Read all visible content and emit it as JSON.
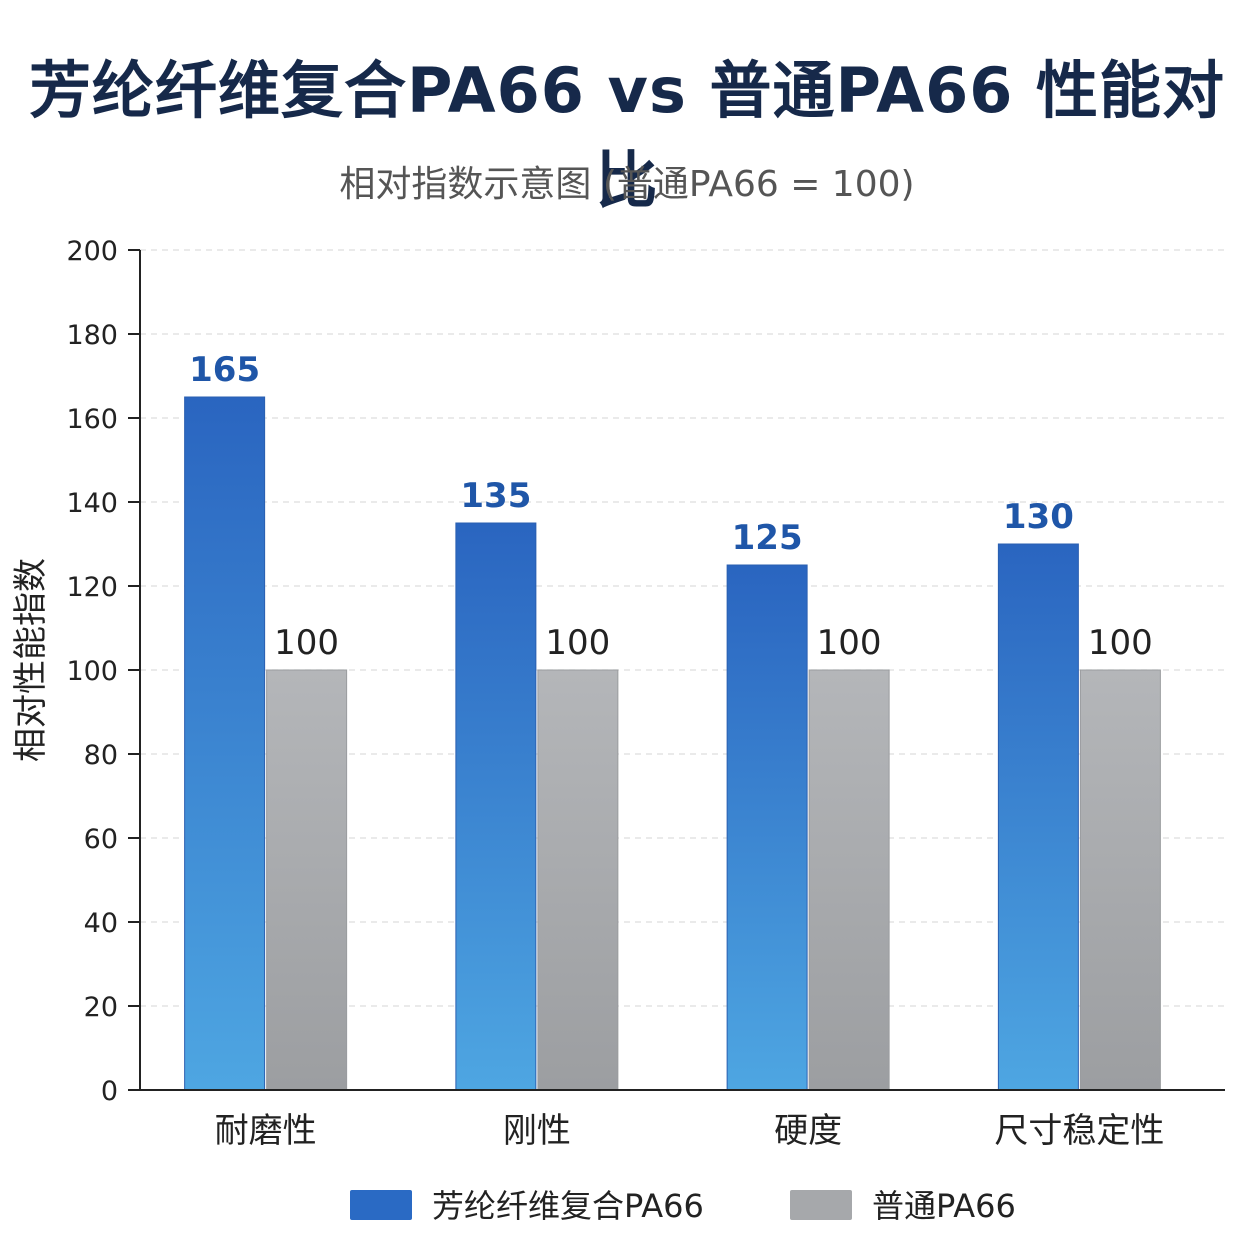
{
  "chart_data": {
    "type": "bar",
    "title": "芳纶纤维复合PA66 vs 普通PA66 性能对比",
    "subtitle": "相对指数示意图 (普通PA66 = 100)",
    "ylabel": "相对性能指数",
    "xlabel": "",
    "ylim": [
      0,
      200
    ],
    "yticks": [
      0,
      20,
      40,
      60,
      80,
      100,
      120,
      140,
      160,
      180,
      200
    ],
    "categories": [
      "耐磨性",
      "刚性",
      "硬度",
      "尺寸稳定性"
    ],
    "series": [
      {
        "name": "芳纶纤维复合PA66",
        "values": [
          165,
          135,
          125,
          130
        ],
        "color": "#2a6ac4",
        "color_light": "#4da3e0"
      },
      {
        "name": "普通PA66",
        "values": [
          100,
          100,
          100,
          100
        ],
        "color": "#a6a8ab",
        "color_light": "#b3b5b8"
      }
    ],
    "grid": true,
    "legend": "bottom-center"
  }
}
